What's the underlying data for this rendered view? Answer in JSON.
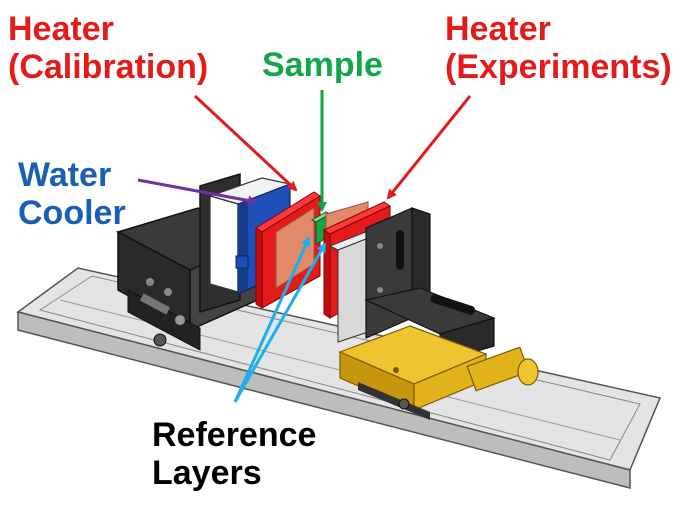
{
  "colors": {
    "heater": "#e31b1b",
    "sample": "#12a54a",
    "water_cooler": "#1a5fb4",
    "reference_layers": "#1ab0ea",
    "water_arrow": "#7030a0",
    "text_dark": "#000000",
    "stage_gold": "#e2b21a",
    "stage_black": "#2e2e2e",
    "rail": "#dcdcdc"
  },
  "labels": {
    "heater_calibration": {
      "line1": "Heater",
      "line2": "(Calibration)"
    },
    "heater_experiments": {
      "line1": "Heater",
      "line2": "(Experiments)"
    },
    "sample": "Sample",
    "water_cooler": {
      "line1": "Water",
      "line2": "Cooler"
    },
    "reference_layers": {
      "line1": "Reference",
      "line2": "Layers"
    }
  },
  "icons": [
    "heater-plate",
    "sample-block",
    "water-cooler-block",
    "reference-layer",
    "translation-stage",
    "rail"
  ]
}
